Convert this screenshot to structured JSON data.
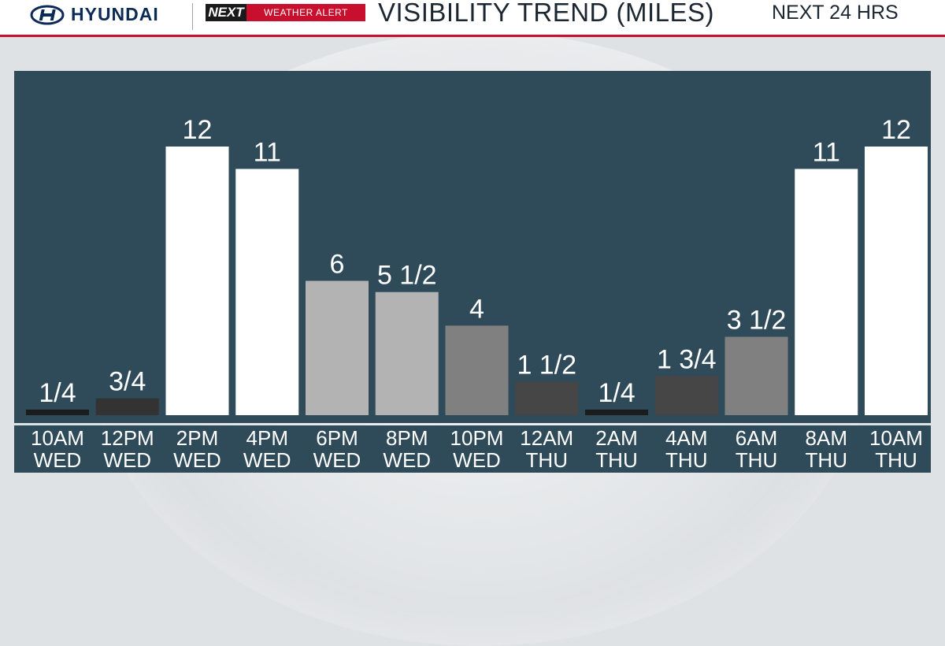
{
  "header": {
    "brand": "HYUNDAI",
    "badge_next": "NEXT",
    "badge_alert": "WEATHER ALERT",
    "title": "VISIBILITY TREND (MILES)",
    "subtitle": "NEXT 24 HRS"
  },
  "colors": {
    "panel": "#2f4b5a",
    "accent_red": "#c8102e",
    "bar_white": "#ffffff",
    "bar_light_gray": "#b3b3b3",
    "bar_mid_gray": "#808080",
    "bar_dark_gray": "#464646",
    "bar_darker": "#333333",
    "bar_black": "#1c1c1c"
  },
  "chart_data": {
    "type": "bar",
    "title": "VISIBILITY TREND (MILES)",
    "subtitle": "NEXT 24 HRS",
    "ylim": [
      0,
      12
    ],
    "grid": false,
    "legend": "none",
    "categories": [
      [
        "10AM",
        "WED"
      ],
      [
        "12PM",
        "WED"
      ],
      [
        "2PM",
        "WED"
      ],
      [
        "4PM",
        "WED"
      ],
      [
        "6PM",
        "WED"
      ],
      [
        "8PM",
        "WED"
      ],
      [
        "10PM",
        "WED"
      ],
      [
        "12AM",
        "THU"
      ],
      [
        "2AM",
        "THU"
      ],
      [
        "4AM",
        "THU"
      ],
      [
        "6AM",
        "THU"
      ],
      [
        "8AM",
        "THU"
      ],
      [
        "10AM",
        "THU"
      ]
    ],
    "values": [
      0.25,
      0.75,
      12,
      11,
      6,
      5.5,
      4,
      1.5,
      0.25,
      1.75,
      3.5,
      11,
      12
    ],
    "value_labels": [
      "1/4",
      "3/4",
      "12",
      "11",
      "6",
      "5 1/2",
      "4",
      "1 1/2",
      "1/4",
      "1 3/4",
      "3 1/2",
      "11",
      "12"
    ],
    "bar_colors": [
      "#1c1c1c",
      "#333333",
      "#ffffff",
      "#ffffff",
      "#b3b3b3",
      "#b3b3b3",
      "#808080",
      "#464646",
      "#1c1c1c",
      "#464646",
      "#808080",
      "#ffffff",
      "#ffffff"
    ]
  }
}
